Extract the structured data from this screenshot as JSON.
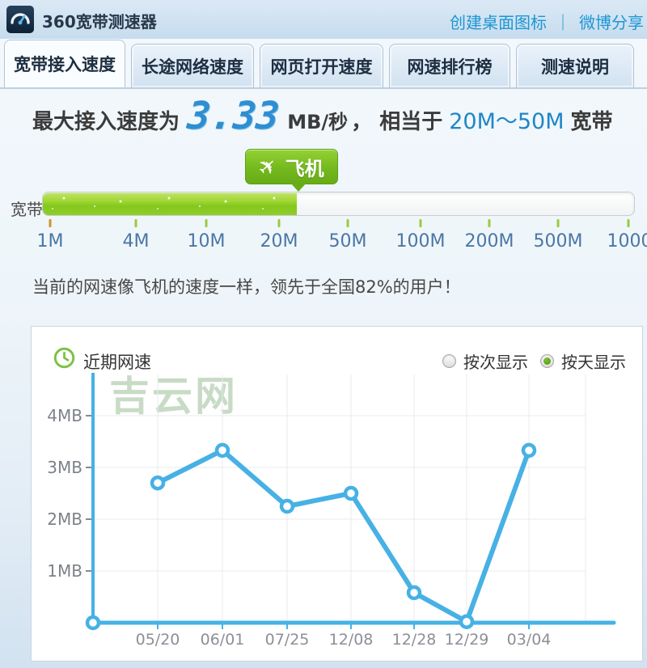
{
  "header": {
    "title": "360宽带测速器",
    "logo_icon": "speedometer-icon",
    "links": [
      {
        "label": "创建桌面图标"
      },
      {
        "label": "微博分享"
      }
    ],
    "link_separator": "｜"
  },
  "tabs": [
    {
      "label": "宽带接入速度",
      "active": true
    },
    {
      "label": "长途网络速度",
      "active": false
    },
    {
      "label": "网页打开速度",
      "active": false
    },
    {
      "label": "网速排行榜",
      "active": false
    },
    {
      "label": "测速说明",
      "active": false
    }
  ],
  "result": {
    "prefix": "最大接入速度为",
    "speed_value": "3.33",
    "speed_unit": "MB/秒",
    "middle": "， 相当于",
    "bandwidth_range": "20M～50M",
    "suffix": "宽带"
  },
  "speed_badge": {
    "icon": "airplane-icon",
    "label": "飞机"
  },
  "progress": {
    "label": "宽带",
    "percent_filled": 43,
    "scale_labels": [
      "1M",
      "4M",
      "10M",
      "20M",
      "50M",
      "100M",
      "200M",
      "500M",
      "1000M"
    ]
  },
  "note": "当前的网速像飞机的速度一样，领先于全国82%的用户！",
  "chart_panel": {
    "icon": "clock-icon",
    "title": "近期网速",
    "radios": [
      {
        "label": "按次显示",
        "selected": false
      },
      {
        "label": "按天显示",
        "selected": true
      }
    ],
    "watermark": "吉云网"
  },
  "chart_data": {
    "type": "line",
    "title": "近期网速",
    "x": [
      "05/20",
      "06/01",
      "07/25",
      "12/08",
      "12/28",
      "12/29",
      "03/04"
    ],
    "values": [
      2.7,
      3.33,
      2.25,
      2.5,
      0.58,
      0.02,
      3.33
    ],
    "unit": "MB",
    "y_ticks": [
      {
        "value": 1,
        "label": "1MB"
      },
      {
        "value": 2,
        "label": "2MB"
      },
      {
        "value": 3,
        "label": "3MB"
      },
      {
        "value": 4,
        "label": "4MB"
      }
    ],
    "ylim": [
      0,
      4.8
    ],
    "grid": true,
    "marker": "open-circle",
    "line_color": "#47b1e5",
    "grid_color": "#e7ebee",
    "x_label_color": "#8b9097",
    "y_label_color": "#7d8288",
    "legend_position": "none"
  },
  "colors": {
    "link_blue": "#1d96d4",
    "lcd_blue": "#2e8ed2",
    "range_blue": "#1f86c6",
    "bar_green": "#84c71d",
    "badge_green": "#74b91e"
  }
}
